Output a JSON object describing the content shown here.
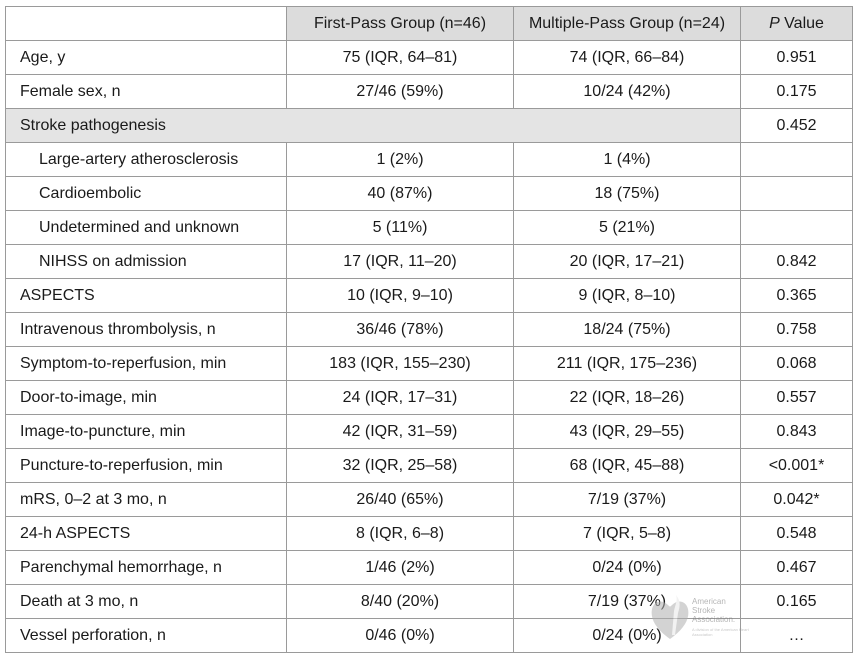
{
  "header": {
    "col_variable": "",
    "col_first_pass": "First-Pass Group (n=46)",
    "col_multiple_pass": "Multiple-Pass Group (n=24)",
    "col_p_letter": "P",
    "col_p_rest": " Value"
  },
  "rows": [
    {
      "label": "Age, y",
      "first": "75 (IQR, 64–81)",
      "multiple": "74 (IQR, 66–84)",
      "p": "0.951"
    },
    {
      "label": "Female sex, n",
      "first": "27/46 (59%)",
      "multiple": "10/24 (42%)",
      "p": "0.175"
    },
    {
      "label": "Stroke pathogenesis",
      "p": "0.452"
    },
    {
      "label": "Large-artery atherosclerosis",
      "first": "1 (2%)",
      "multiple": "1 (4%)",
      "p": ""
    },
    {
      "label": "Cardioembolic",
      "first": "40 (87%)",
      "multiple": "18 (75%)",
      "p": ""
    },
    {
      "label": "Undetermined and unknown",
      "first": "5 (11%)",
      "multiple": "5 (21%)",
      "p": ""
    },
    {
      "label": "NIHSS on admission",
      "first": "17 (IQR, 11–20)",
      "multiple": "20 (IQR, 17–21)",
      "p": "0.842"
    },
    {
      "label": "ASPECTS",
      "first": "10 (IQR, 9–10)",
      "multiple": "9 (IQR, 8–10)",
      "p": "0.365"
    },
    {
      "label": "Intravenous thrombolysis, n",
      "first": "36/46 (78%)",
      "multiple": "18/24 (75%)",
      "p": "0.758"
    },
    {
      "label": "Symptom-to-reperfusion, min",
      "first": "183 (IQR, 155–230)",
      "multiple": "211 (IQR, 175–236)",
      "p": "0.068"
    },
    {
      "label": "Door-to-image, min",
      "first": "24 (IQR, 17–31)",
      "multiple": "22 (IQR, 18–26)",
      "p": "0.557"
    },
    {
      "label": "Image-to-puncture, min",
      "first": "42 (IQR, 31–59)",
      "multiple": "43 (IQR, 29–55)",
      "p": "0.843"
    },
    {
      "label": "Puncture-to-reperfusion, min",
      "first": "32 (IQR, 25–58)",
      "multiple": "68 (IQR, 45–88)",
      "p": "<0.001*"
    },
    {
      "label": "mRS, 0–2 at 3 mo, n",
      "first": "26/40 (65%)",
      "multiple": "7/19 (37%)",
      "p": "0.042*"
    },
    {
      "label": "24-h ASPECTS",
      "first": "8 (IQR, 6–8)",
      "multiple": "7 (IQR, 5–8)",
      "p": "0.548"
    },
    {
      "label": "Parenchymal hemorrhage, n",
      "first": "1/46 (2%)",
      "multiple": "0/24 (0%)",
      "p": "0.467"
    },
    {
      "label": "Death at 3 mo, n",
      "first": "8/40 (20%)",
      "multiple": "7/19 (37%)",
      "p": "0.165"
    },
    {
      "label": "Vessel perforation, n",
      "first": "0/46 (0%)",
      "multiple": "0/24 (0%)",
      "p": "…"
    }
  ],
  "watermark": {
    "icon": "heart-torch-logo-icon",
    "line1": "American",
    "line2": "Stroke",
    "line3": "Association.",
    "tagline": "A division of the American Heart Association"
  },
  "colors": {
    "header_bg": "#dcdcdc",
    "section_bg": "#e4e4e4",
    "border": "#9a9a9a"
  }
}
